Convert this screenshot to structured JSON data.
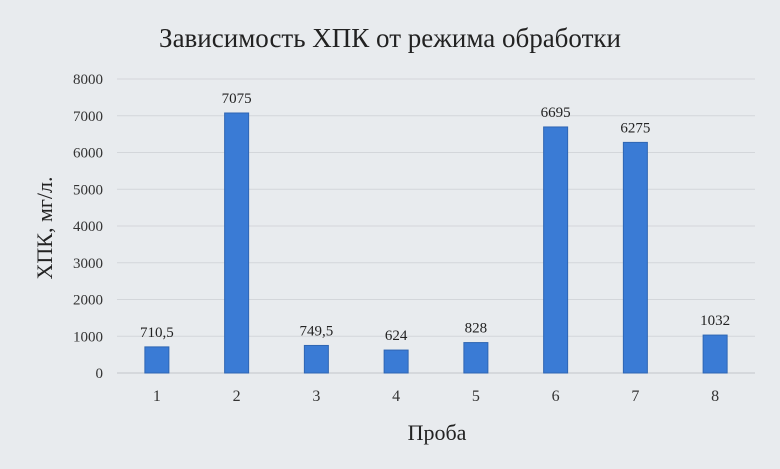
{
  "chart_data": {
    "type": "bar",
    "title": "Зависимость ХПК от режима обработки",
    "xlabel": "Проба",
    "ylabel": "ХПК, мг/л.",
    "categories": [
      "1",
      "2",
      "3",
      "4",
      "5",
      "6",
      "7",
      "8"
    ],
    "values": [
      710.5,
      7075,
      749.5,
      624,
      828,
      6695,
      6275,
      1032
    ],
    "data_labels": [
      "710,5",
      "7075",
      "749,5",
      "624",
      "828",
      "6695",
      "6275",
      "1032"
    ],
    "ylim": [
      0,
      8000
    ],
    "yticks": [
      0,
      1000,
      2000,
      3000,
      4000,
      5000,
      6000,
      7000,
      8000
    ],
    "grid": true,
    "legend": "none",
    "bar_color": "#3a7bd5"
  }
}
